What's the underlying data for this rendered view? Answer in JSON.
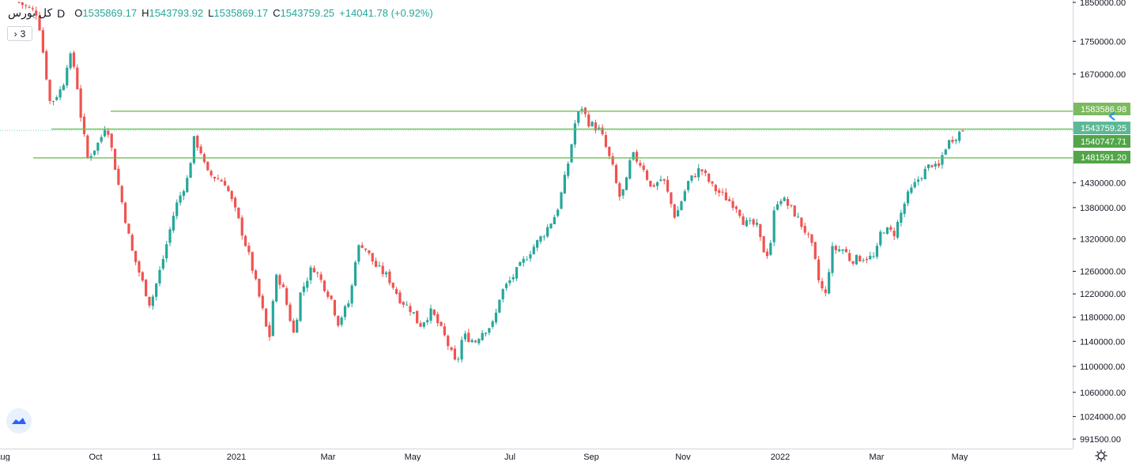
{
  "legend": {
    "symbol": "کل بورس",
    "interval": "D",
    "o_label": "O",
    "open": "1535869.17",
    "h_label": "H",
    "high": "1543793.92",
    "l_label": "L",
    "low": "1535869.17",
    "c_label": "C",
    "close": "1543759.25",
    "change": "+14041.78 (+0.92%)"
  },
  "collapse": {
    "count": "3"
  },
  "colors": {
    "up": "#26a69a",
    "down": "#ef5350",
    "level_line": "#6fbf58",
    "axis_text": "#131722",
    "grid_border": "#d1d4dc"
  },
  "chart_data": {
    "type": "candlestick",
    "y_scale": "log",
    "ylim": [
      985000,
      1860000
    ],
    "y_ticks": [
      "1850000.00",
      "1750000.00",
      "1670000.00",
      "1430000.00",
      "1380000.00",
      "1320000.00",
      "1260000.00",
      "1220000.00",
      "1180000.00",
      "1140000.00",
      "1100000.00",
      "1060000.00",
      "1024000.00",
      "991500.00"
    ],
    "x_labels": [
      "Aug",
      "Oct",
      "11",
      "2021",
      "Mar",
      "May",
      "Jul",
      "Sep",
      "Nov",
      "2022",
      "Mar",
      "May"
    ],
    "levels": [
      {
        "label": "1583586.98",
        "value": 1583586.98
      },
      {
        "label": "1543759.25",
        "value": 1543759.25
      },
      {
        "label": "1540747.71",
        "value": 1540747.71
      },
      {
        "label": "1481591.20",
        "value": 1481591.2
      }
    ],
    "close_path": [
      [
        0,
        1850000
      ],
      [
        3,
        1820000
      ],
      [
        5,
        1600000
      ],
      [
        7,
        1640000
      ],
      [
        8,
        1720000
      ],
      [
        9,
        1680000
      ],
      [
        10,
        1560000
      ],
      [
        11,
        1480000
      ],
      [
        13,
        1520000
      ],
      [
        14,
        1560000
      ],
      [
        16,
        1420000
      ],
      [
        18,
        1300000
      ],
      [
        21,
        1200000
      ],
      [
        23,
        1280000
      ],
      [
        25,
        1380000
      ],
      [
        27,
        1440000
      ],
      [
        28,
        1520000
      ],
      [
        29,
        1500000
      ],
      [
        30,
        1450000
      ],
      [
        33,
        1430000
      ],
      [
        35,
        1360000
      ],
      [
        37,
        1280000
      ],
      [
        39,
        1190000
      ],
      [
        40,
        1140000
      ],
      [
        41,
        1250000
      ],
      [
        42,
        1240000
      ],
      [
        44,
        1150000
      ],
      [
        45,
        1220000
      ],
      [
        47,
        1270000
      ],
      [
        50,
        1210000
      ],
      [
        51,
        1170000
      ],
      [
        53,
        1210000
      ],
      [
        54,
        1300000
      ],
      [
        55,
        1310000
      ],
      [
        57,
        1270000
      ],
      [
        59,
        1250000
      ],
      [
        61,
        1210000
      ],
      [
        63,
        1190000
      ],
      [
        64,
        1165000
      ],
      [
        66,
        1190000
      ],
      [
        68,
        1150000
      ],
      [
        70,
        1100000
      ],
      [
        71,
        1150000
      ],
      [
        73,
        1140000
      ],
      [
        74,
        1155000
      ],
      [
        76,
        1170000
      ],
      [
        77,
        1220000
      ],
      [
        79,
        1250000
      ],
      [
        82,
        1300000
      ],
      [
        84,
        1330000
      ],
      [
        86,
        1370000
      ],
      [
        87,
        1420000
      ],
      [
        88,
        1480000
      ],
      [
        89,
        1560000
      ],
      [
        90,
        1595000
      ],
      [
        91,
        1560000
      ],
      [
        93,
        1540000
      ],
      [
        95,
        1460000
      ],
      [
        96,
        1400000
      ],
      [
        97,
        1420000
      ],
      [
        98,
        1490000
      ],
      [
        100,
        1460000
      ],
      [
        101,
        1420000
      ],
      [
        103,
        1440000
      ],
      [
        104,
        1400000
      ],
      [
        105,
        1360000
      ],
      [
        107,
        1430000
      ],
      [
        109,
        1460000
      ],
      [
        111,
        1420000
      ],
      [
        113,
        1400000
      ],
      [
        115,
        1380000
      ],
      [
        116,
        1350000
      ],
      [
        118,
        1345000
      ],
      [
        119,
        1300000
      ],
      [
        120,
        1290000
      ],
      [
        121,
        1390000
      ],
      [
        122,
        1400000
      ],
      [
        124,
        1370000
      ],
      [
        126,
        1330000
      ],
      [
        127,
        1300000
      ],
      [
        128,
        1240000
      ],
      [
        129,
        1215000
      ],
      [
        130,
        1300000
      ],
      [
        132,
        1300000
      ],
      [
        133,
        1280000
      ],
      [
        135,
        1285000
      ],
      [
        137,
        1285000
      ],
      [
        138,
        1340000
      ],
      [
        140,
        1330000
      ],
      [
        142,
        1400000
      ],
      [
        144,
        1440000
      ],
      [
        146,
        1470000
      ],
      [
        147,
        1455000
      ],
      [
        148,
        1500000
      ],
      [
        149,
        1520000
      ],
      [
        150,
        1530000
      ],
      [
        151,
        1543759
      ]
    ]
  }
}
